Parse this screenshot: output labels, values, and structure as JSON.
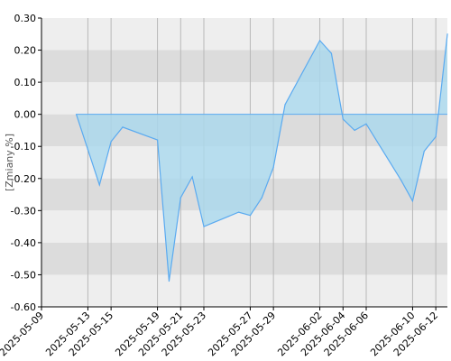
{
  "chart_data": {
    "type": "area",
    "title": "",
    "xlabel": "",
    "ylabel": "[Zmiany %]",
    "ylim": [
      -0.6,
      0.3
    ],
    "yticks": [
      "0.30",
      "0.20",
      "0.10",
      "0.00",
      "-0.10",
      "-0.20",
      "-0.30",
      "-0.40",
      "-0.50",
      "-0.60"
    ],
    "xlim": [
      "2025-05-09",
      "2025-06-13"
    ],
    "xticks": [
      "2025-05-09",
      "2025-05-13",
      "2025-05-15",
      "2025-05-19",
      "2025-05-21",
      "2025-05-23",
      "2025-05-27",
      "2025-05-29",
      "2025-06-02",
      "2025-06-04",
      "2025-06-06",
      "2025-06-10",
      "2025-06-12"
    ],
    "grid": true,
    "legend": "none",
    "colors": {
      "line": "#5aaaf0",
      "fill": "#a9d8ee",
      "band_dark": "#dcdcdc",
      "band_light": "#eeeeee",
      "gridline": "#b8b8b8"
    },
    "series": [
      {
        "x": [
          "2025-05-12",
          "2025-05-13",
          "2025-05-14",
          "2025-05-15",
          "2025-05-16",
          "2025-05-19",
          "2025-05-20",
          "2025-05-21",
          "2025-05-22",
          "2025-05-23",
          "2025-05-26",
          "2025-05-27",
          "2025-05-28",
          "2025-05-29",
          "2025-05-30",
          "2025-06-02",
          "2025-06-03",
          "2025-06-04",
          "2025-06-05",
          "2025-06-06",
          "2025-06-09",
          "2025-06-10",
          "2025-06-11",
          "2025-06-12",
          "2025-06-13"
        ],
        "values": [
          0.0,
          -0.11,
          -0.22,
          -0.085,
          -0.04,
          -0.08,
          -0.52,
          -0.26,
          -0.195,
          -0.35,
          -0.305,
          -0.315,
          -0.26,
          -0.165,
          0.03,
          0.23,
          0.19,
          -0.015,
          -0.05,
          -0.03,
          -0.205,
          -0.27,
          -0.115,
          -0.07,
          0.25
        ]
      }
    ]
  }
}
